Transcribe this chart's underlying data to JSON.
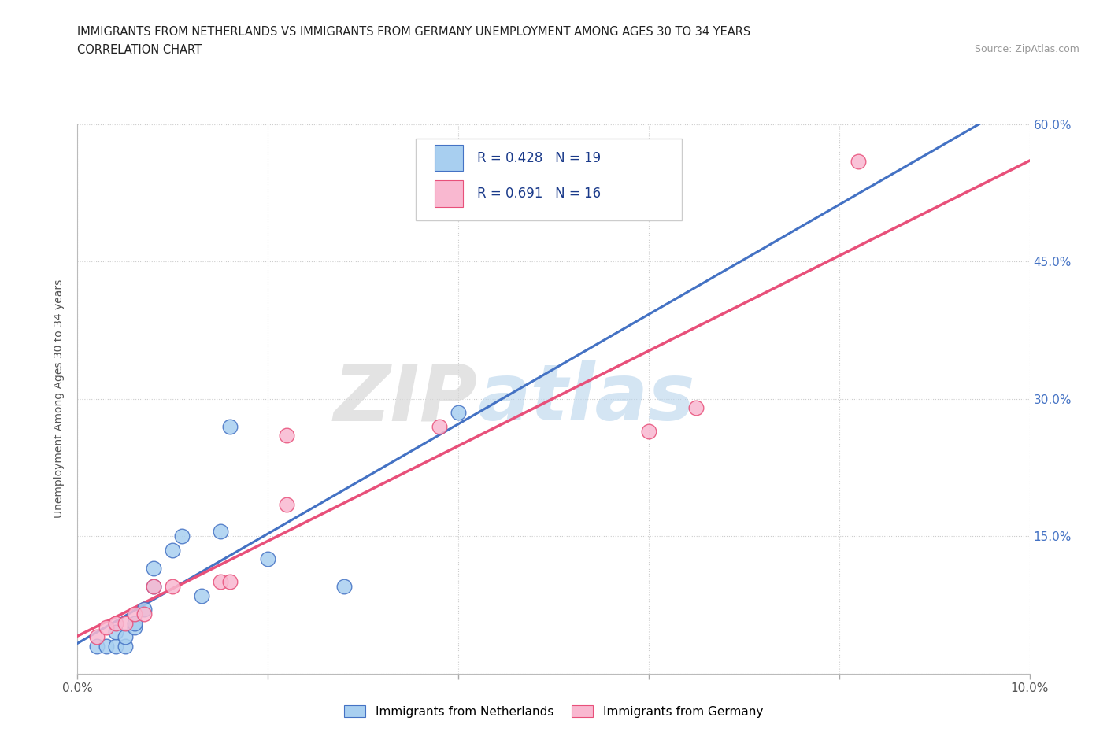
{
  "title_line1": "IMMIGRANTS FROM NETHERLANDS VS IMMIGRANTS FROM GERMANY UNEMPLOYMENT AMONG AGES 30 TO 34 YEARS",
  "title_line2": "CORRELATION CHART",
  "source": "Source: ZipAtlas.com",
  "ylabel": "Unemployment Among Ages 30 to 34 years",
  "watermark_zip": "ZIP",
  "watermark_atlas": "atlas",
  "legend_label1": "Immigrants from Netherlands",
  "legend_label2": "Immigrants from Germany",
  "R1": 0.428,
  "N1": 19,
  "R2": 0.691,
  "N2": 16,
  "color_nl": "#a8cff0",
  "color_de": "#f9b8d0",
  "line_color_nl": "#4472c4",
  "line_color_de": "#e8507a",
  "dashed_color": "#a0b8d8",
  "xlim": [
    0.0,
    0.1
  ],
  "ylim": [
    0.0,
    0.6
  ],
  "xticks": [
    0.0,
    0.02,
    0.04,
    0.06,
    0.08,
    0.1
  ],
  "yticks": [
    0.0,
    0.15,
    0.3,
    0.45,
    0.6
  ],
  "nl_x": [
    0.002,
    0.003,
    0.004,
    0.004,
    0.005,
    0.005,
    0.006,
    0.006,
    0.007,
    0.008,
    0.008,
    0.01,
    0.011,
    0.013,
    0.015,
    0.016,
    0.02,
    0.028,
    0.04
  ],
  "nl_y": [
    0.03,
    0.03,
    0.03,
    0.045,
    0.03,
    0.04,
    0.05,
    0.055,
    0.07,
    0.095,
    0.115,
    0.135,
    0.15,
    0.085,
    0.155,
    0.27,
    0.125,
    0.095,
    0.285
  ],
  "de_x": [
    0.002,
    0.003,
    0.004,
    0.005,
    0.006,
    0.007,
    0.008,
    0.01,
    0.015,
    0.016,
    0.022,
    0.022,
    0.038,
    0.06,
    0.065,
    0.082
  ],
  "de_y": [
    0.04,
    0.05,
    0.055,
    0.055,
    0.065,
    0.065,
    0.095,
    0.095,
    0.1,
    0.1,
    0.26,
    0.185,
    0.27,
    0.265,
    0.29,
    0.56
  ]
}
